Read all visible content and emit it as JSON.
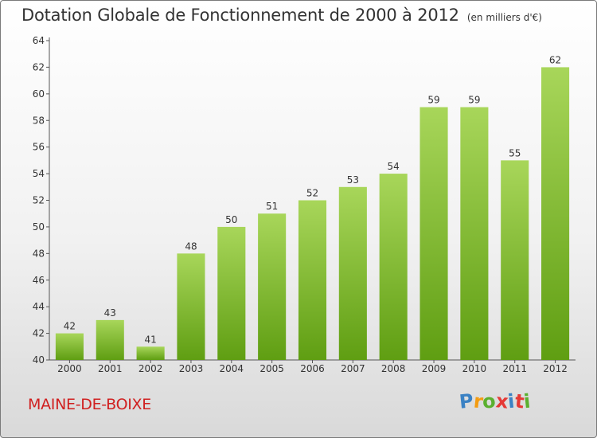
{
  "title": "Dotation Globale de Fonctionnement de 2000 à 2012",
  "unit": "(en milliers d'€)",
  "commune": "MAINE-DE-BOIXE",
  "logo": {
    "letters": [
      "P",
      "r",
      "o",
      "x",
      "i",
      "t",
      "i"
    ],
    "colors": [
      "#3b82c4",
      "#f39c12",
      "#5bb02f",
      "#e53935",
      "#3b82c4",
      "#e53935",
      "#5bb02f"
    ]
  },
  "colors": {
    "bar_top": "#a8d65a",
    "bar_bottom": "#5f9e12",
    "commune": "#d02020"
  },
  "chart_data": {
    "type": "bar",
    "categories": [
      "2000",
      "2001",
      "2002",
      "2003",
      "2004",
      "2005",
      "2006",
      "2007",
      "2008",
      "2009",
      "2010",
      "2011",
      "2012"
    ],
    "values": [
      42,
      43,
      41,
      48,
      50,
      51,
      52,
      53,
      54,
      59,
      59,
      55,
      62
    ],
    "data_labels": [
      "42",
      "43",
      "41",
      "48",
      "50",
      "51",
      "52",
      "53",
      "54",
      "59",
      "59",
      "55",
      "62"
    ],
    "ylim": [
      40,
      64
    ],
    "yticks": [
      "40",
      "42",
      "44",
      "46",
      "48",
      "50",
      "52",
      "54",
      "56",
      "58",
      "60",
      "62",
      "64"
    ],
    "title": "Dotation Globale de Fonctionnement de 2000 à 2012",
    "xlabel": "",
    "ylabel": "",
    "grid": false,
    "legend": "none"
  }
}
